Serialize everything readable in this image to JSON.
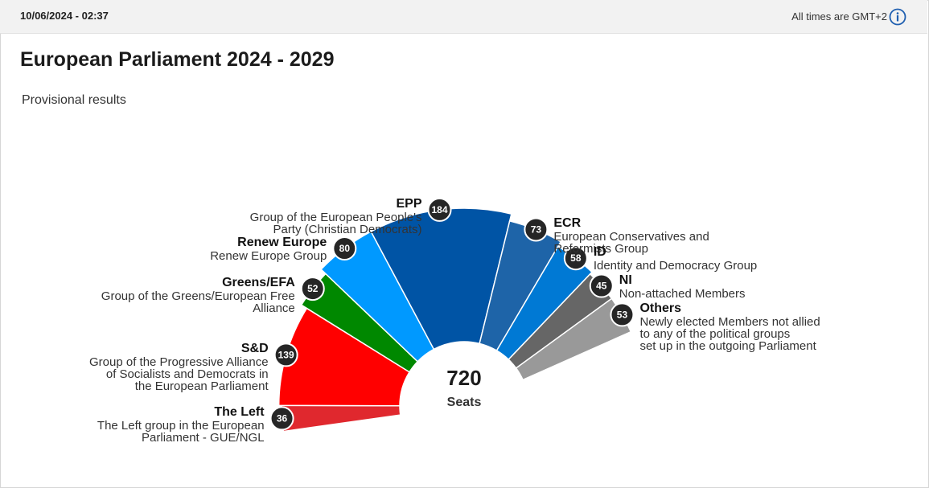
{
  "header": {
    "timestamp": "10/06/2024 - 02:37",
    "timezone_note": "All times are GMT+2",
    "info_icon": "info-circle-icon"
  },
  "page": {
    "title": "European Parliament 2024 - 2029",
    "subtitle": "Provisional results"
  },
  "chart_data": {
    "type": "pie",
    "variant": "semicircle-hemicycle",
    "total": {
      "value": "720",
      "label": "Seats"
    },
    "slices": [
      {
        "name": "The Left",
        "description": "The Left group in the European\nParliament - GUE/NGL",
        "value": 36,
        "color": "#e0282e"
      },
      {
        "name": "S&D",
        "description": "Group of the Progressive Alliance\nof Socialists and Democrats in\nthe European Parliament",
        "value": 139,
        "color": "#ff0000"
      },
      {
        "name": "Greens/EFA",
        "description": "Group of the Greens/European Free\nAlliance",
        "value": 52,
        "color": "#008800"
      },
      {
        "name": "Renew Europe",
        "description": "Renew Europe Group",
        "value": 80,
        "color": "#0099ff"
      },
      {
        "name": "EPP",
        "description": "Group of the European People's\nParty (Christian Democrats)",
        "value": 184,
        "color": "#0054a5"
      },
      {
        "name": "ECR",
        "description": "European Conservatives and\nReformists Group",
        "value": 73,
        "color": "#1e64a8"
      },
      {
        "name": "ID",
        "description": "Identity and Democracy Group",
        "value": 58,
        "color": "#0079d4"
      },
      {
        "name": "NI",
        "description": "Non-attached Members",
        "value": 45,
        "color": "#666666"
      },
      {
        "name": "Others",
        "description": "Newly elected Members not allied\nto any of the political groups\nset up in the outgoing Parliament",
        "value": 53,
        "color": "#999999"
      }
    ]
  }
}
